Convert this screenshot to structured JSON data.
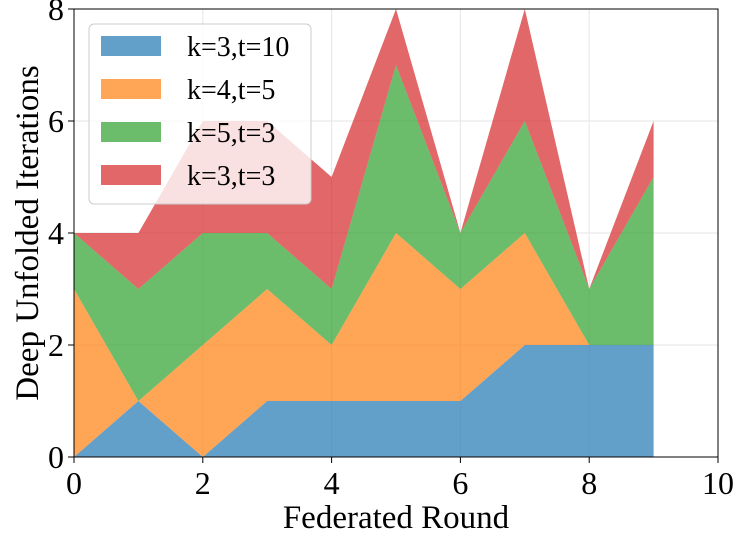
{
  "chart_data": {
    "type": "area",
    "stacked": true,
    "xlabel": "Federated Round",
    "ylabel": "Deep Unfolded Iterations",
    "xlim": [
      0,
      10
    ],
    "ylim": [
      0,
      8
    ],
    "xticks": [
      0,
      2,
      4,
      6,
      8,
      10
    ],
    "yticks": [
      0,
      2,
      4,
      6,
      8
    ],
    "grid": true,
    "legend_position": "top-left",
    "x": [
      0,
      1,
      2,
      3,
      4,
      5,
      6,
      7,
      8,
      9
    ],
    "series": [
      {
        "name": "k=3,t=10",
        "color": "#1f77b4",
        "values": [
          0,
          1,
          0,
          1,
          1,
          1,
          1,
          2,
          2,
          2
        ]
      },
      {
        "name": "k=4,t=5",
        "color": "#ff7f0e",
        "values": [
          3,
          0,
          2,
          2,
          1,
          3,
          2,
          2,
          0,
          0
        ]
      },
      {
        "name": "k=5,t=3",
        "color": "#2ca02c",
        "values": [
          1,
          2,
          2,
          1,
          1,
          3,
          1,
          2,
          1,
          3
        ]
      },
      {
        "name": "k=3,t=3",
        "color": "#d62728",
        "values": [
          0,
          1,
          2,
          2,
          2,
          1,
          0,
          2,
          0,
          1
        ]
      }
    ]
  }
}
